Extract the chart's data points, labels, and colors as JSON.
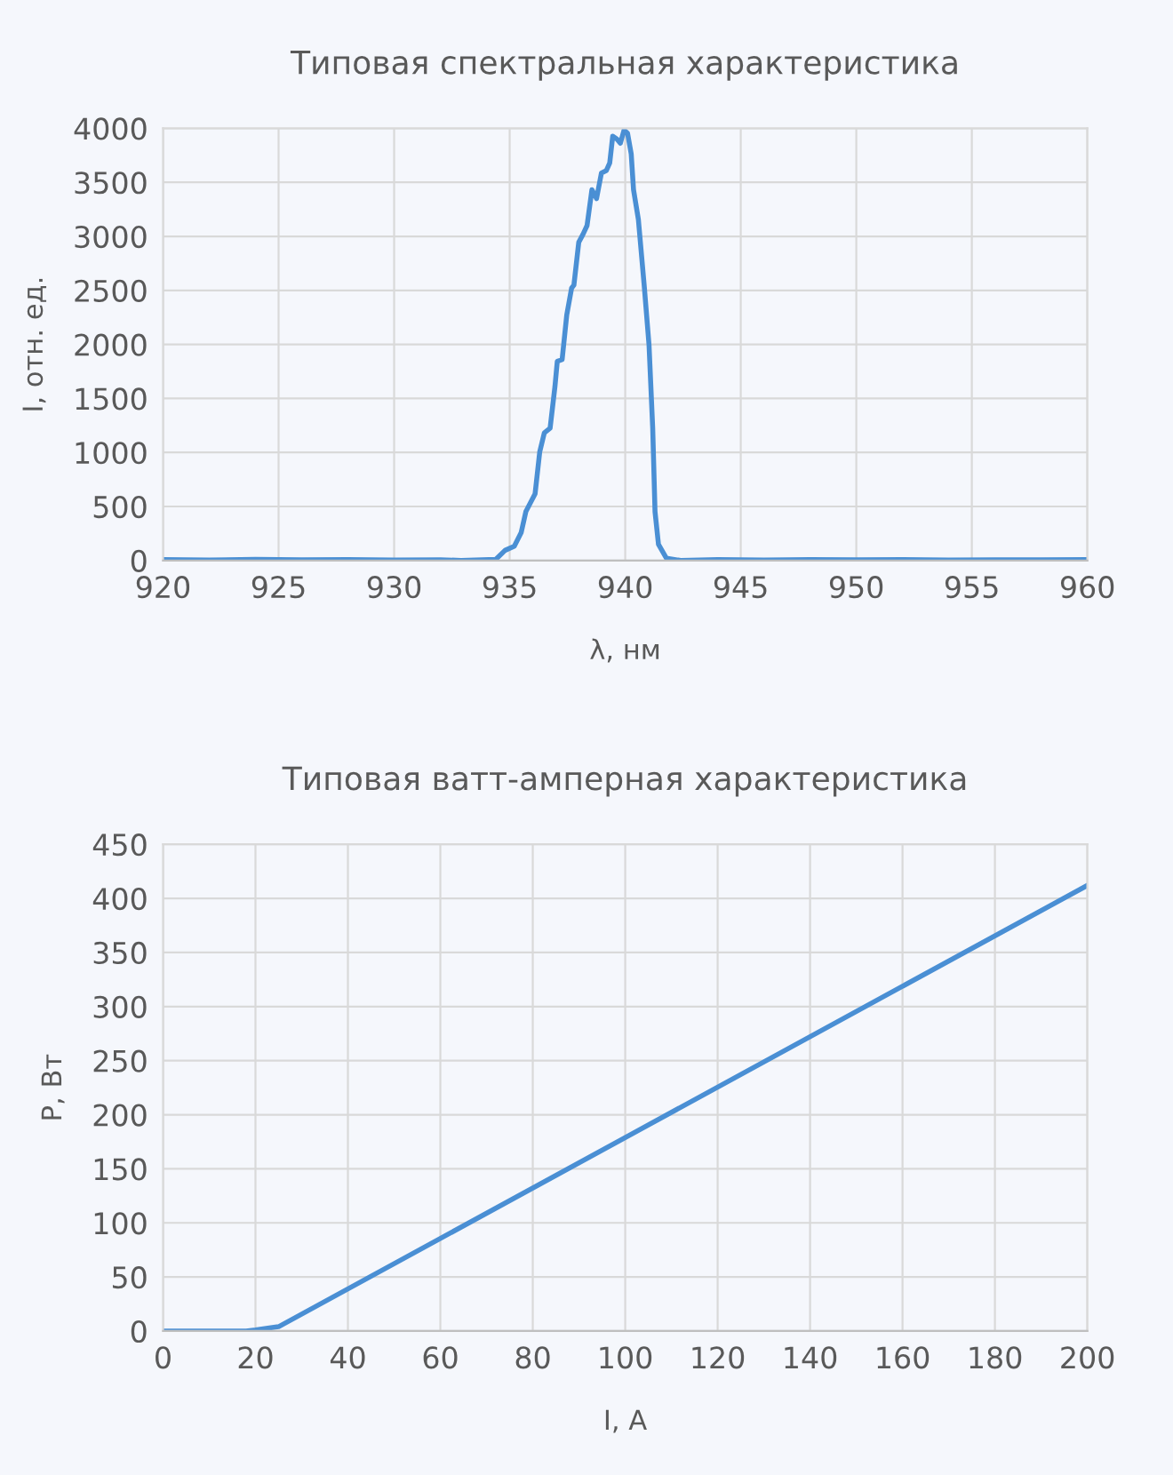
{
  "chart_data": [
    {
      "type": "line",
      "title": "Типовая спектральная характеристика",
      "xlabel": "λ, нм",
      "ylabel": "I, отн. ед.",
      "x": [
        920,
        922,
        924,
        926,
        928,
        930,
        932,
        932.9,
        934.4,
        934.8,
        935.2,
        935.5,
        935.7,
        936.1,
        936.3,
        936.5,
        936.75,
        936.96,
        937.06,
        937.27,
        937.47,
        937.68,
        937.78,
        937.99,
        938.17,
        938.35,
        938.56,
        938.76,
        938.97,
        939.18,
        939.33,
        939.46,
        939.64,
        939.79,
        939.95,
        940.1,
        940.26,
        940.36,
        940.57,
        940.82,
        941.03,
        941.19,
        941.29,
        941.44,
        941.78,
        942.4,
        944,
        946,
        948,
        950,
        952,
        954,
        956,
        958,
        960
      ],
      "series": [
        {
          "color": "#4a8fd4",
          "values": [
            8,
            5,
            10,
            6,
            8,
            5,
            7,
            0,
            10,
            94,
            132,
            260,
            452,
            618,
            1004,
            1181,
            1225,
            1611,
            1843,
            1859,
            2273,
            2521,
            2549,
            2946,
            3018,
            3101,
            3432,
            3349,
            3586,
            3608,
            3680,
            3928,
            3900,
            3862,
            3983,
            3956,
            3763,
            3432,
            3156,
            2549,
            1997,
            1225,
            452,
            149,
            22,
            0,
            8,
            5,
            9,
            6,
            8,
            5,
            7,
            6,
            8
          ]
        }
      ],
      "xlim": [
        920,
        960
      ],
      "xticks": [
        920,
        925,
        930,
        935,
        940,
        945,
        950,
        955,
        960
      ],
      "ylim": [
        0,
        4000
      ],
      "yticks": [
        0,
        500,
        1000,
        1500,
        2000,
        2500,
        3000,
        3500,
        4000
      ],
      "grid": true,
      "legend": false,
      "marker": "none",
      "line_style": "solid"
    },
    {
      "type": "line",
      "title": "Типовая ватт-амперная характеристика",
      "xlabel": "I, А",
      "ylabel": "P, Вт",
      "x": [
        0,
        18,
        20,
        25,
        200
      ],
      "series": [
        {
          "color": "#4a8fd4",
          "values": [
            0,
            0,
            1,
            4,
            412
          ]
        }
      ],
      "xlim": [
        0,
        200
      ],
      "xticks": [
        0,
        20,
        40,
        60,
        80,
        100,
        120,
        140,
        160,
        180,
        200
      ],
      "ylim": [
        0,
        450
      ],
      "yticks": [
        0,
        50,
        100,
        150,
        200,
        250,
        300,
        350,
        400,
        450
      ],
      "grid": true,
      "legend": false,
      "marker": "none",
      "line_style": "solid"
    }
  ]
}
